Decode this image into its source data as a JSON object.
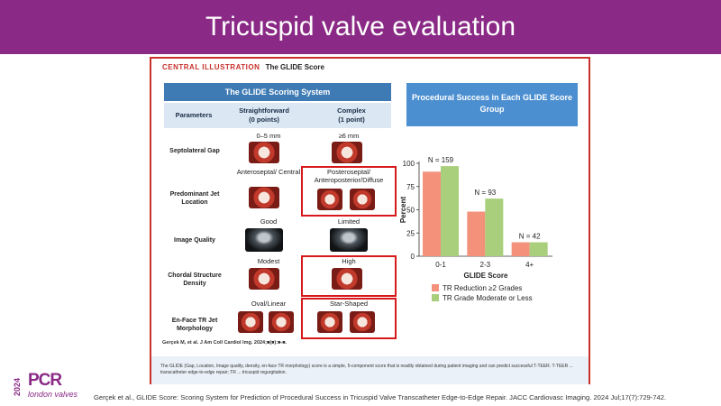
{
  "slide": {
    "title": "Tricuspid valve evaluation",
    "reference": "Gerçek et al., GLIDE Score: Scoring System for Prediction of Procedural Success in Tricuspid Valve Transcatheter Edge-to-Edge Repair. JACC Cardiovasc Imaging. 2024 Jul;17(7):729-742."
  },
  "logo": {
    "year": "2024",
    "brand": "PCR",
    "sub": "london valves"
  },
  "illustration": {
    "label_red": "CENTRAL ILLUSTRATION",
    "label_black": "The GLIDE Score",
    "table_title": "The GLIDE Scoring System",
    "col_params": "Parameters",
    "col_straight": "Straightforward",
    "col_straight_pts": "(0 points)",
    "col_complex": "Complex",
    "col_complex_pts": "(1 point)",
    "rows": [
      {
        "label": "Septolateral Gap",
        "straight": "0–5 mm",
        "complex": "≥6 mm"
      },
      {
        "label": "Predominant Jet Location",
        "straight": "Anteroseptal/ Central",
        "complex": "Posteroseptal/ Anteroposterior/Diffuse"
      },
      {
        "label": "Image Quality",
        "straight": "Good",
        "complex": "Limited"
      },
      {
        "label": "Chordal Structure Density",
        "straight": "Modest",
        "complex": "High"
      },
      {
        "label": "En-Face TR Jet Morphology",
        "straight": "Oval/Linear",
        "complex": "Star-Shaped"
      }
    ],
    "citation": "Gerçek M, et al. J Am Coll Cardiol Img. 2024;■(■):■-■.",
    "footnote": "The GLIDE (Gap, Location, Image quality, density, en-face TR morphology) score is a simple, 5-component score that is readily obtained during patient imaging and can predict successful T-TEER. T-TEER ... transcatheter edge-to-edge repair; TR ... tricuspid regurgitation.",
    "right_title": "Procedural Success in Each GLIDE Score Group"
  },
  "chart_data": {
    "type": "bar",
    "categories": [
      "0-1",
      "2-3",
      "4+"
    ],
    "series": [
      {
        "name": "TR Reduction ≥2 Grades",
        "values": [
          91,
          48,
          15
        ],
        "color": "#f4917a"
      },
      {
        "name": "TR Grade Moderate or Less",
        "values": [
          97,
          62,
          15
        ],
        "color": "#a9cf7c"
      }
    ],
    "group_labels": [
      "N = 159",
      "N = 93",
      "N = 42"
    ],
    "xlabel": "GLIDE Score",
    "ylabel": "Percent",
    "ylim": [
      0,
      100
    ],
    "yticks": [
      0,
      25,
      50,
      75,
      100
    ],
    "legend_position": "bottom"
  }
}
